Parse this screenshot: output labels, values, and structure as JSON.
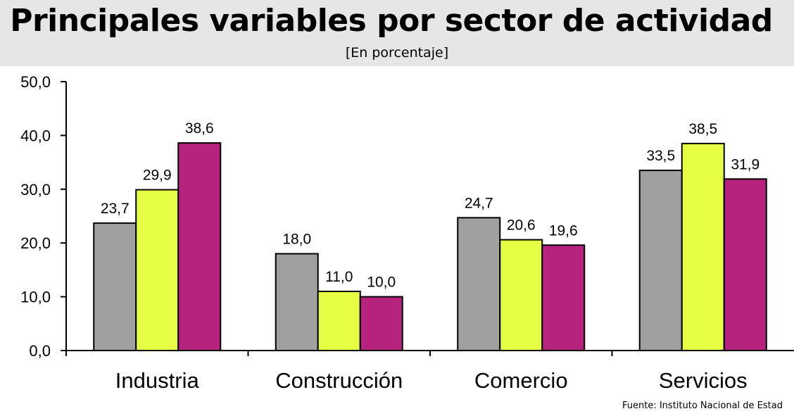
{
  "title": "Principales variables por sector de actividad",
  "subtitle": "[En porcentaje]",
  "source": "Fuente: Instituto Nacional de Estad",
  "chart_data": {
    "type": "bar",
    "categories": [
      "Industria",
      "Construcción",
      "Comercio",
      "Servicios"
    ],
    "series": [
      {
        "values": [
          23.7,
          18.0,
          24.7,
          33.5
        ],
        "labels": [
          "23,7",
          "18,0",
          "24,7",
          "33,5"
        ],
        "color": "#a0a0a0"
      },
      {
        "values": [
          29.9,
          11.0,
          20.6,
          38.5
        ],
        "labels": [
          "29,9",
          "11,0",
          "20,6",
          "38,5"
        ],
        "color": "#e6ff44"
      },
      {
        "values": [
          38.6,
          10.0,
          19.6,
          31.9
        ],
        "labels": [
          "38,6",
          "10,0",
          "19,6",
          "31,9"
        ],
        "color": "#b5237e"
      }
    ],
    "ylim": [
      0,
      50
    ],
    "yticks": [
      "0,0",
      "10,0",
      "20,0",
      "30,0",
      "40,0",
      "50,0"
    ],
    "grid": false,
    "legend": "none"
  }
}
